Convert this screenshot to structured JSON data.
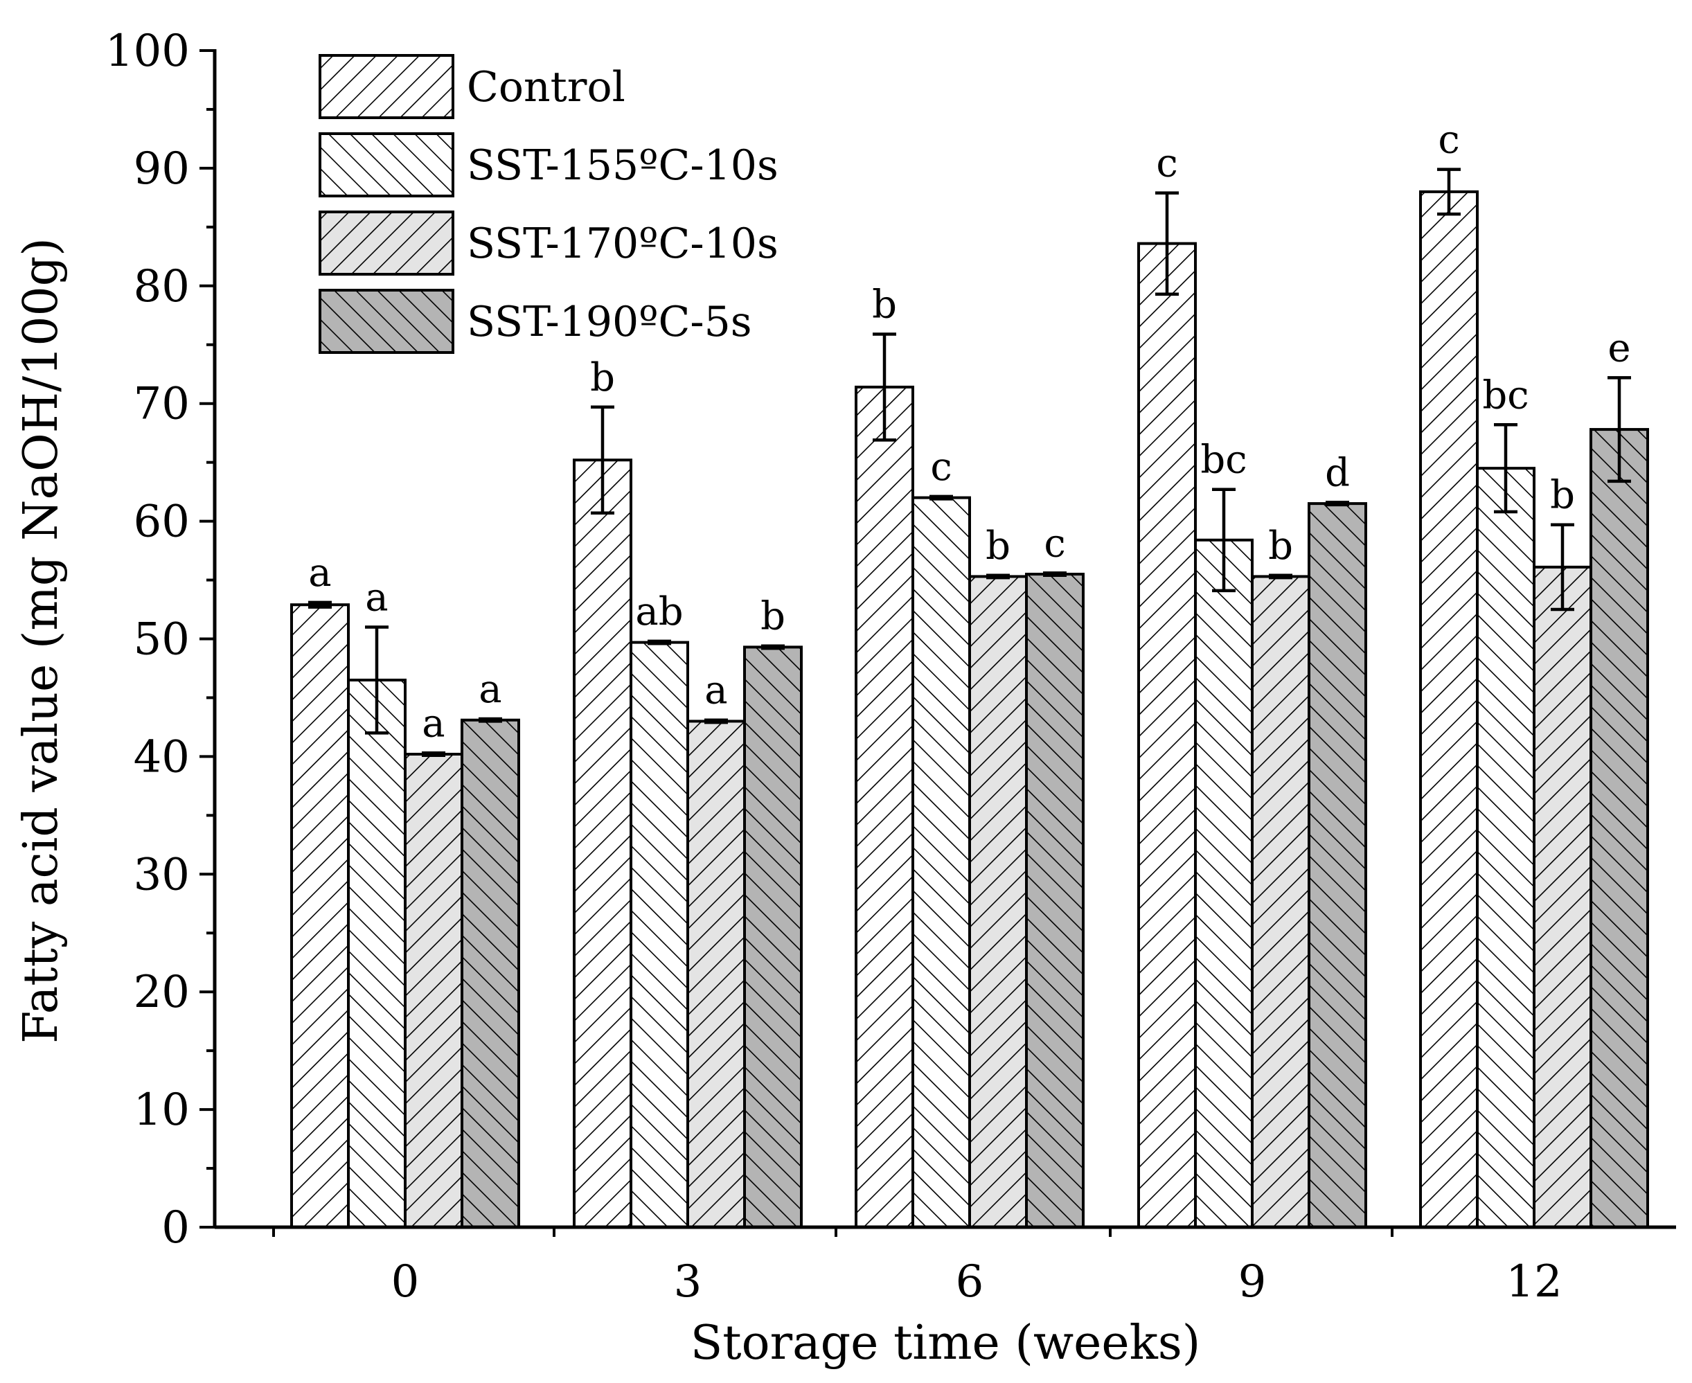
{
  "chart_data": {
    "type": "bar",
    "title": "",
    "xlabel": "Storage time (weeks)",
    "ylabel": "Fatty acid value (mg NaOH/100g)",
    "ylim": [
      0,
      100
    ],
    "y_ticks": [
      "0",
      "10",
      "20",
      "30",
      "40",
      "50",
      "60",
      "70",
      "80",
      "90",
      "100"
    ],
    "categories": [
      "0",
      "3",
      "6",
      "9",
      "12"
    ],
    "legend_position": "top-left",
    "series": [
      {
        "name": "Control",
        "fill": "#ffffff",
        "hatch": "diag-right",
        "values": [
          52.9,
          65.2,
          71.4,
          83.6,
          88.0
        ],
        "errors": [
          0.2,
          4.5,
          4.5,
          4.3,
          1.9
        ],
        "letters": [
          "a",
          "b",
          "b",
          "c",
          "c"
        ]
      },
      {
        "name": "SST-155ºC-10s",
        "fill": "#ffffff",
        "hatch": "diag-left",
        "values": [
          46.5,
          49.7,
          62.0,
          58.4,
          64.5
        ],
        "errors": [
          4.5,
          0.1,
          0.1,
          4.3,
          3.7
        ],
        "letters": [
          "a",
          "ab",
          "c",
          "bc",
          "bc"
        ]
      },
      {
        "name": "SST-170ºC-10s",
        "fill": "#e4e4e4",
        "hatch": "diag-right",
        "values": [
          40.2,
          43.0,
          55.3,
          55.3,
          56.1
        ],
        "errors": [
          0.1,
          0.1,
          0.1,
          0.1,
          3.6
        ],
        "letters": [
          "a",
          "a",
          "b",
          "b",
          "b"
        ]
      },
      {
        "name": "SST-190ºC-5s",
        "fill": "#b4b4b4",
        "hatch": "diag-left",
        "values": [
          43.1,
          49.3,
          55.5,
          61.5,
          67.8
        ],
        "errors": [
          0.1,
          0.1,
          0.1,
          0.1,
          4.4
        ],
        "letters": [
          "a",
          "b",
          "c",
          "d",
          "e"
        ]
      }
    ]
  }
}
